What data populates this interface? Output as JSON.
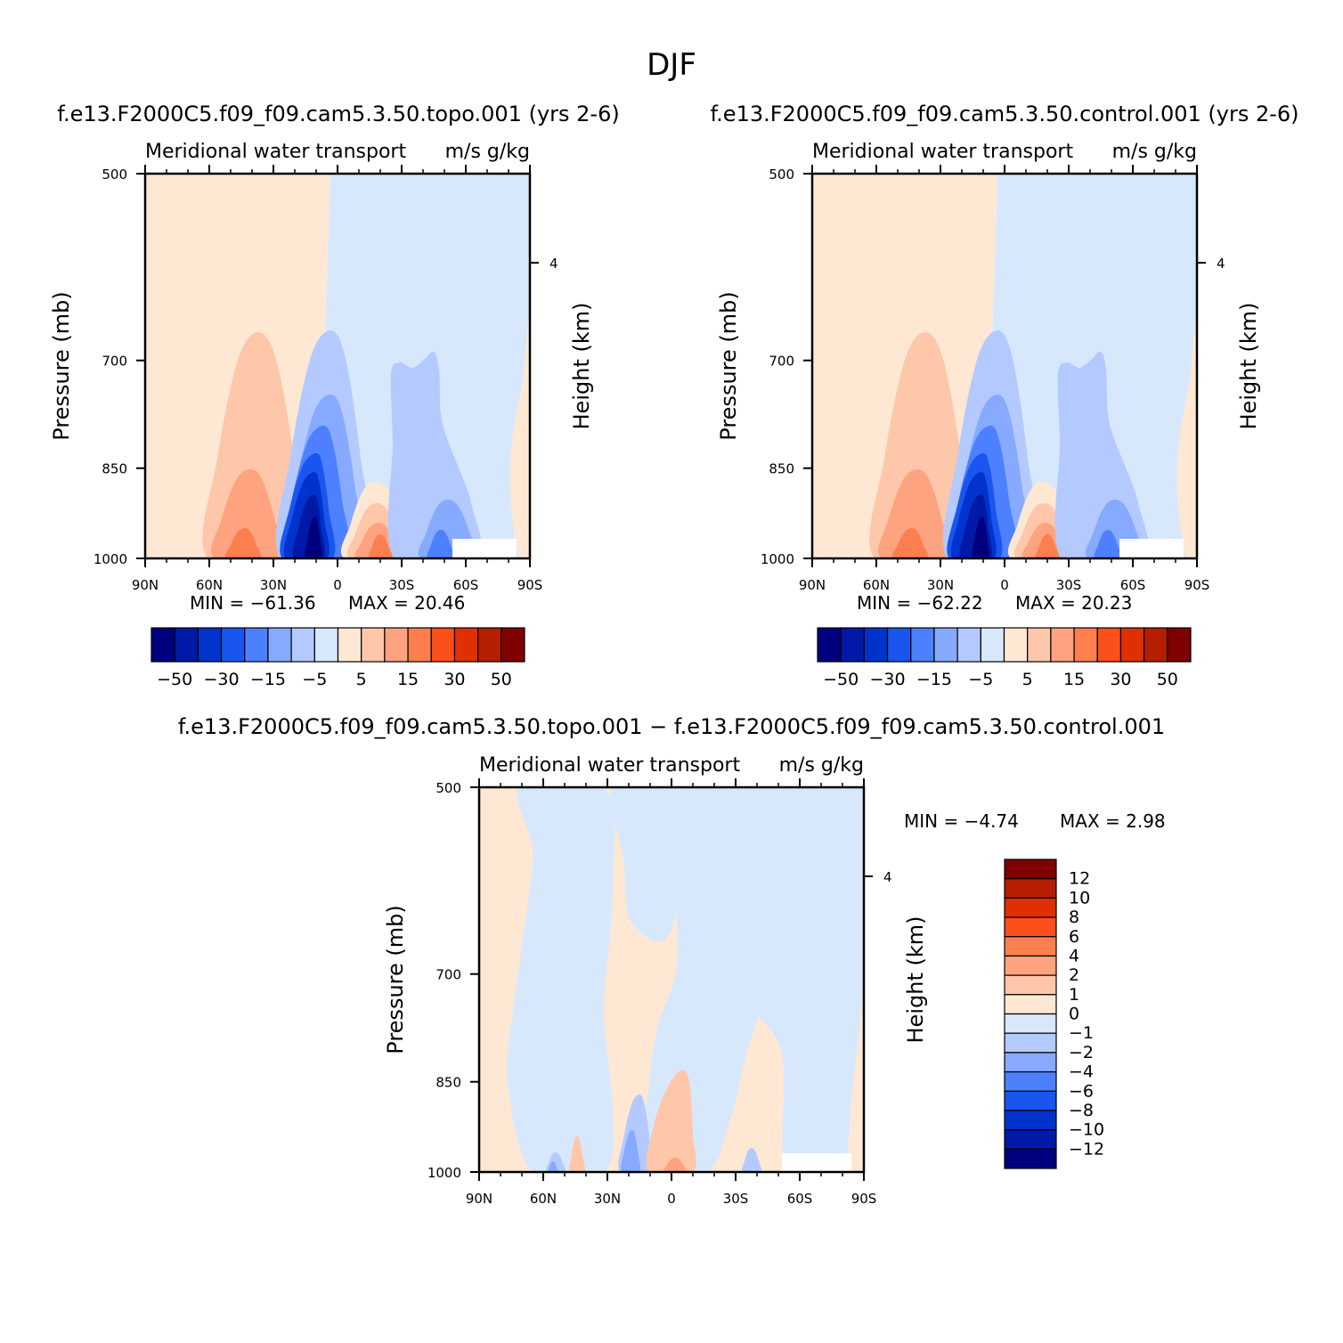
{
  "figure_title": "DJF",
  "colors": {
    "diverging": [
      "#00007f",
      "#0019a6",
      "#0033cc",
      "#1a55f0",
      "#4d80ff",
      "#86aaff",
      "#b4caff",
      "#d7e8fc",
      "#fee8d4",
      "#fec7aa",
      "#fea380",
      "#fd7f50",
      "#fb4f1c",
      "#e02f00",
      "#b51e00",
      "#7f0000"
    ]
  },
  "labels": {
    "var_title": "Meridional water transport",
    "units": "m/s g/kg",
    "ylabel": "Pressure (mb)",
    "ylabel_right": "Height (km)"
  },
  "panels": [
    {
      "title": "f.e13.F2000C5.f09_f09.cam5.3.50.topo.001 (yrs 2-6)",
      "min_label": "MIN = −61.36",
      "max_label": "MAX = 20.46"
    },
    {
      "title": "f.e13.F2000C5.f09_f09.cam5.3.50.control.001 (yrs 2-6)",
      "min_label": "MIN = −62.22",
      "max_label": "MAX = 20.23"
    },
    {
      "title": "f.e13.F2000C5.f09_f09.cam5.3.50.topo.001 − f.e13.F2000C5.f09_f09.cam5.3.50.control.001",
      "min_label": "MIN = −4.74",
      "max_label": "MAX = 2.98"
    }
  ],
  "chart_data": [
    {
      "type": "heatmap",
      "title": "Meridional water transport",
      "units": "m/s g/kg",
      "xlabel": "",
      "ylabel": "Pressure (mb)",
      "ylabel_right": "Height (km)",
      "xticks": [
        "90N",
        "60N",
        "30N",
        "0",
        "30S",
        "60S",
        "90S"
      ],
      "yticks": [
        500,
        700,
        850,
        1000
      ],
      "ylim": [
        1000,
        500
      ],
      "right_ticks": [
        4
      ],
      "min": -61.36,
      "max": 20.46,
      "contour_levels": [
        -50,
        -40,
        -30,
        -20,
        -15,
        -10,
        -5,
        0,
        5,
        10,
        15,
        20,
        30,
        40,
        50
      ],
      "colorbar_labels": [
        "−50",
        "−30",
        "−15",
        "−5",
        "5",
        "15",
        "30",
        "50"
      ]
    },
    {
      "type": "heatmap",
      "title": "Meridional water transport",
      "units": "m/s g/kg",
      "xlabel": "",
      "ylabel": "Pressure (mb)",
      "ylabel_right": "Height (km)",
      "xticks": [
        "90N",
        "60N",
        "30N",
        "0",
        "30S",
        "60S",
        "90S"
      ],
      "yticks": [
        500,
        700,
        850,
        1000
      ],
      "ylim": [
        1000,
        500
      ],
      "right_ticks": [
        4
      ],
      "min": -62.22,
      "max": 20.23,
      "contour_levels": [
        -50,
        -40,
        -30,
        -20,
        -15,
        -10,
        -5,
        0,
        5,
        10,
        15,
        20,
        30,
        40,
        50
      ],
      "colorbar_labels": [
        "−50",
        "−30",
        "−15",
        "−5",
        "5",
        "15",
        "30",
        "50"
      ]
    },
    {
      "type": "heatmap",
      "title": "Meridional water transport",
      "units": "m/s g/kg",
      "xlabel": "",
      "ylabel": "Pressure (mb)",
      "ylabel_right": "Height (km)",
      "xticks": [
        "90N",
        "60N",
        "30N",
        "0",
        "30S",
        "60S",
        "90S"
      ],
      "yticks": [
        500,
        700,
        850,
        1000
      ],
      "ylim": [
        1000,
        500
      ],
      "right_ticks": [
        4
      ],
      "min": -4.74,
      "max": 2.98,
      "contour_levels": [
        -12,
        -10,
        -8,
        -6,
        -4,
        -2,
        -1,
        0,
        1,
        2,
        4,
        6,
        8,
        10,
        12
      ],
      "colorbar_labels": [
        "12",
        "10",
        "8",
        "6",
        "4",
        "2",
        "1",
        "0",
        "−1",
        "−2",
        "−4",
        "−6",
        "−8",
        "−10",
        "−12"
      ]
    }
  ]
}
